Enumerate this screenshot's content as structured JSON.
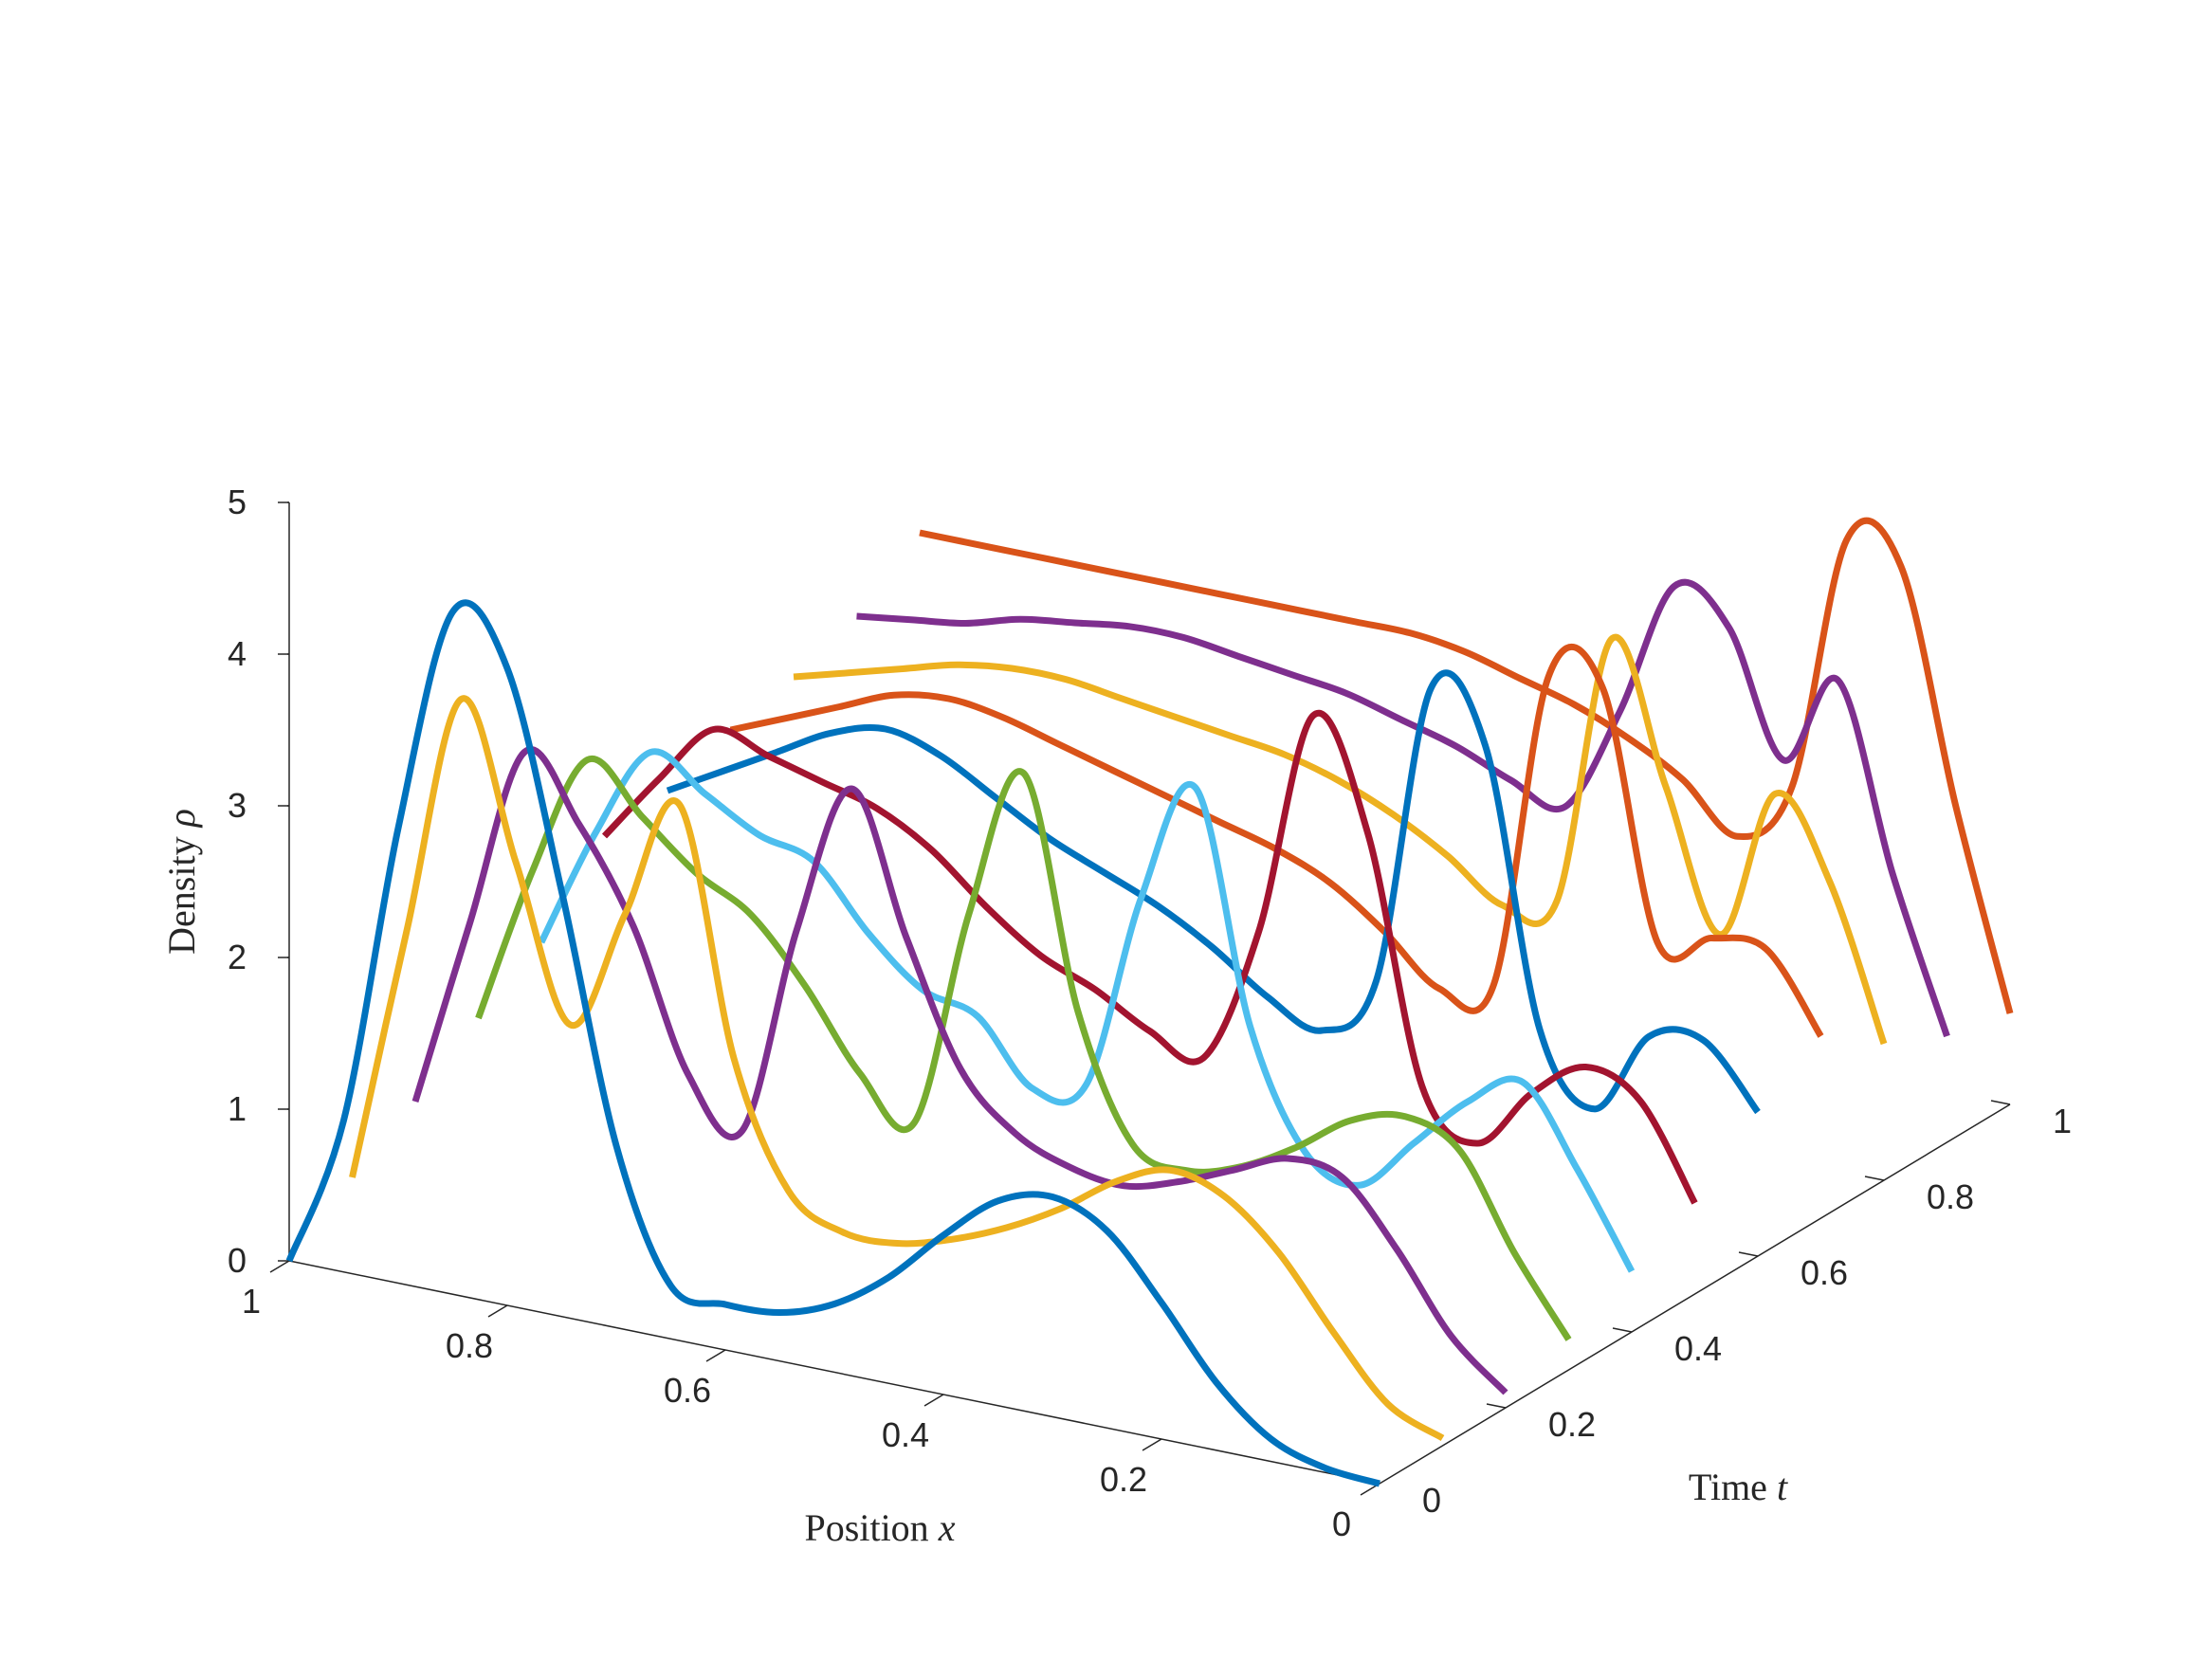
{
  "chart_data": {
    "type": "line",
    "title": "",
    "xlabel": "Position",
    "xlabel_var": "x",
    "ylabel": "Time",
    "ylabel_var": "t",
    "zlabel": "Density",
    "zlabel_var": "ρ",
    "xlim": [
      0,
      1
    ],
    "ylim": [
      0,
      1
    ],
    "zlim": [
      0,
      5
    ],
    "x_ticks": [
      {
        "value": 0,
        "label": "0"
      },
      {
        "value": 0.2,
        "label": "0.2"
      },
      {
        "value": 0.4,
        "label": "0.4"
      },
      {
        "value": 0.6,
        "label": "0.6"
      },
      {
        "value": 0.8,
        "label": "0.8"
      },
      {
        "value": 1,
        "label": "1"
      }
    ],
    "y_ticks": [
      {
        "value": 0,
        "label": "0"
      },
      {
        "value": 0.2,
        "label": "0.2"
      },
      {
        "value": 0.4,
        "label": "0.4"
      },
      {
        "value": 0.6,
        "label": "0.6"
      },
      {
        "value": 0.8,
        "label": "0.8"
      },
      {
        "value": 1,
        "label": "1"
      }
    ],
    "z_ticks": [
      {
        "value": 0,
        "label": "0"
      },
      {
        "value": 1,
        "label": "1"
      },
      {
        "value": 2,
        "label": "2"
      },
      {
        "value": 3,
        "label": "3"
      },
      {
        "value": 4,
        "label": "4"
      },
      {
        "value": 5,
        "label": "5"
      }
    ],
    "grid": false,
    "legend": "none",
    "series": [
      {
        "t": 0.0,
        "color": "#0072BD",
        "x": [
          0,
          0.05,
          0.1,
          0.15,
          0.2,
          0.25,
          0.3,
          0.35,
          0.4,
          0.45,
          0.5,
          0.55,
          0.6,
          0.65,
          0.7,
          0.75,
          0.8,
          0.85,
          0.9,
          0.95,
          1.0
        ],
        "rho": [
          0.0,
          0.03,
          0.15,
          0.45,
          0.9,
          1.3,
          1.45,
          1.35,
          1.05,
          0.7,
          0.45,
          0.32,
          0.3,
          0.35,
          1.2,
          2.8,
          4.2,
          4.5,
          3.0,
          1.0,
          0.0
        ]
      },
      {
        "t": 0.1,
        "color": "#EDB120",
        "x": [
          0,
          0.05,
          0.1,
          0.15,
          0.2,
          0.25,
          0.3,
          0.35,
          0.4,
          0.45,
          0.5,
          0.55,
          0.6,
          0.65,
          0.7,
          0.75,
          0.8,
          0.85,
          0.9,
          0.95,
          1.0
        ],
        "rho": [
          0.05,
          0.2,
          0.6,
          1.05,
          1.35,
          1.45,
          1.3,
          1.05,
          0.85,
          0.7,
          0.6,
          0.6,
          0.8,
          1.6,
          3.2,
          2.4,
          1.6,
          2.6,
          3.6,
          2.0,
          0.3
        ]
      },
      {
        "t": 0.2,
        "color": "#7E2F8E",
        "x": [
          0,
          0.05,
          0.1,
          0.15,
          0.2,
          0.25,
          0.3,
          0.35,
          0.4,
          0.45,
          0.5,
          0.55,
          0.6,
          0.65,
          0.7,
          0.75,
          0.8,
          0.85,
          0.9,
          0.95,
          1.0
        ],
        "rho": [
          0.1,
          0.4,
          0.9,
          1.3,
          1.35,
          1.2,
          1.05,
          0.95,
          1.0,
          1.15,
          1.5,
          2.3,
          3.2,
          2.2,
          0.8,
          1.1,
          2.0,
          2.6,
          3.0,
          1.8,
          0.55
        ]
      },
      {
        "t": 0.3,
        "color": "#77AC30",
        "x": [
          0,
          0.05,
          0.1,
          0.15,
          0.2,
          0.25,
          0.3,
          0.35,
          0.4,
          0.45,
          0.5,
          0.55,
          0.6,
          0.65,
          0.7,
          0.75,
          0.8,
          0.85,
          0.9,
          0.95,
          1.0
        ],
        "rho": [
          0.2,
          0.7,
          1.3,
          1.45,
          1.35,
          1.1,
          0.9,
          0.8,
          0.9,
          1.7,
          3.2,
          2.2,
          0.75,
          1.0,
          1.5,
          1.9,
          2.1,
          2.4,
          2.7,
          1.9,
          0.85
        ]
      },
      {
        "t": 0.4,
        "color": "#4DBEEE",
        "x": [
          0,
          0.05,
          0.1,
          0.15,
          0.2,
          0.25,
          0.3,
          0.35,
          0.4,
          0.45,
          0.5,
          0.55,
          0.6,
          0.65,
          0.7,
          0.75,
          0.8,
          0.85,
          0.9,
          0.95,
          1.0
        ],
        "rho": [
          0.4,
          1.0,
          1.5,
          1.3,
          0.95,
          0.6,
          0.75,
          1.5,
          3.0,
          2.2,
          0.9,
          0.8,
          1.2,
          1.3,
          1.6,
          2.0,
          2.1,
          2.3,
          2.5,
          1.9,
          1.1
        ]
      },
      {
        "t": 0.5,
        "color": "#A2142F",
        "x": [
          0,
          0.05,
          0.1,
          0.15,
          0.2,
          0.25,
          0.3,
          0.35,
          0.4,
          0.45,
          0.5,
          0.55,
          0.6,
          0.65,
          0.7,
          0.75,
          0.8,
          0.85,
          0.9,
          0.95,
          1.0
        ],
        "rho": [
          0.6,
          1.2,
          1.35,
          1.1,
          0.7,
          1.0,
          2.6,
          3.3,
          1.8,
          0.9,
          1.0,
          1.2,
          1.35,
          1.6,
          1.9,
          2.1,
          2.2,
          2.3,
          2.4,
          2.0,
          1.55
        ]
      },
      {
        "t": 0.6,
        "color": "#0072BD",
        "x": [
          0,
          0.05,
          0.1,
          0.15,
          0.2,
          0.25,
          0.3,
          0.35,
          0.4,
          0.45,
          0.5,
          0.55,
          0.6,
          0.65,
          0.7,
          0.75,
          0.8,
          0.85,
          0.9,
          0.95,
          1.0
        ],
        "rho": [
          0.95,
          1.35,
          1.3,
          0.75,
          1.2,
          3.0,
          3.3,
          1.3,
          0.9,
          1.05,
          1.3,
          1.5,
          1.65,
          1.8,
          2.0,
          2.2,
          2.3,
          2.2,
          2.0,
          1.8,
          1.6
        ]
      },
      {
        "t": 0.7,
        "color": "#D95319",
        "x": [
          0,
          0.05,
          0.1,
          0.15,
          0.2,
          0.25,
          0.3,
          0.35,
          0.4,
          0.45,
          0.5,
          0.55,
          0.6,
          0.65,
          0.7,
          0.75,
          0.8,
          0.85,
          0.9,
          0.95,
          1.0
        ],
        "rho": [
          1.2,
          1.7,
          1.7,
          1.6,
          3.2,
          3.2,
          1.1,
          1.0,
          1.3,
          1.55,
          1.7,
          1.8,
          1.9,
          2.0,
          2.1,
          2.2,
          2.25,
          2.2,
          2.05,
          1.9,
          1.75
        ]
      },
      {
        "t": 0.8,
        "color": "#EDB120",
        "x": [
          0,
          0.05,
          0.1,
          0.15,
          0.2,
          0.25,
          0.3,
          0.35,
          0.4,
          0.45,
          0.5,
          0.55,
          0.6,
          0.65,
          0.7,
          0.75,
          0.8,
          0.85,
          0.9,
          0.95,
          1.0
        ],
        "rho": [
          0.9,
          1.9,
          2.4,
          1.4,
          2.3,
          3.2,
          1.4,
          1.3,
          1.55,
          1.75,
          1.9,
          2.0,
          2.05,
          2.1,
          2.15,
          2.2,
          2.2,
          2.15,
          2.05,
          1.95,
          1.85
        ]
      },
      {
        "t": 0.9,
        "color": "#7E2F8E",
        "x": [
          0,
          0.05,
          0.1,
          0.15,
          0.2,
          0.25,
          0.3,
          0.35,
          0.4,
          0.45,
          0.5,
          0.55,
          0.6,
          0.65,
          0.7,
          0.75,
          0.8,
          0.85,
          0.9,
          0.95,
          1.0
        ],
        "rho": [
          0.7,
          1.7,
          2.9,
          2.3,
          3.1,
          3.3,
          2.4,
          1.7,
          1.8,
          1.95,
          2.05,
          2.15,
          2.2,
          2.25,
          2.3,
          2.3,
          2.25,
          2.2,
          2.1,
          2.05,
          2.0
        ]
      },
      {
        "t": 1.0,
        "color": "#D95319",
        "x": [
          0,
          0.05,
          0.1,
          0.15,
          0.2,
          0.25,
          0.3,
          0.35,
          0.4,
          0.45,
          0.5,
          0.55,
          0.6,
          0.65,
          0.7,
          0.75,
          0.8,
          0.85,
          0.9,
          0.95,
          1.0
        ],
        "rho": [
          0.6,
          1.9,
          3.4,
          3.5,
          1.8,
          1.4,
          1.7,
          1.9,
          2.05,
          2.15,
          2.25,
          2.3,
          2.3,
          2.3,
          2.3,
          2.3,
          2.3,
          2.3,
          2.3,
          2.3,
          2.3
        ]
      }
    ]
  }
}
